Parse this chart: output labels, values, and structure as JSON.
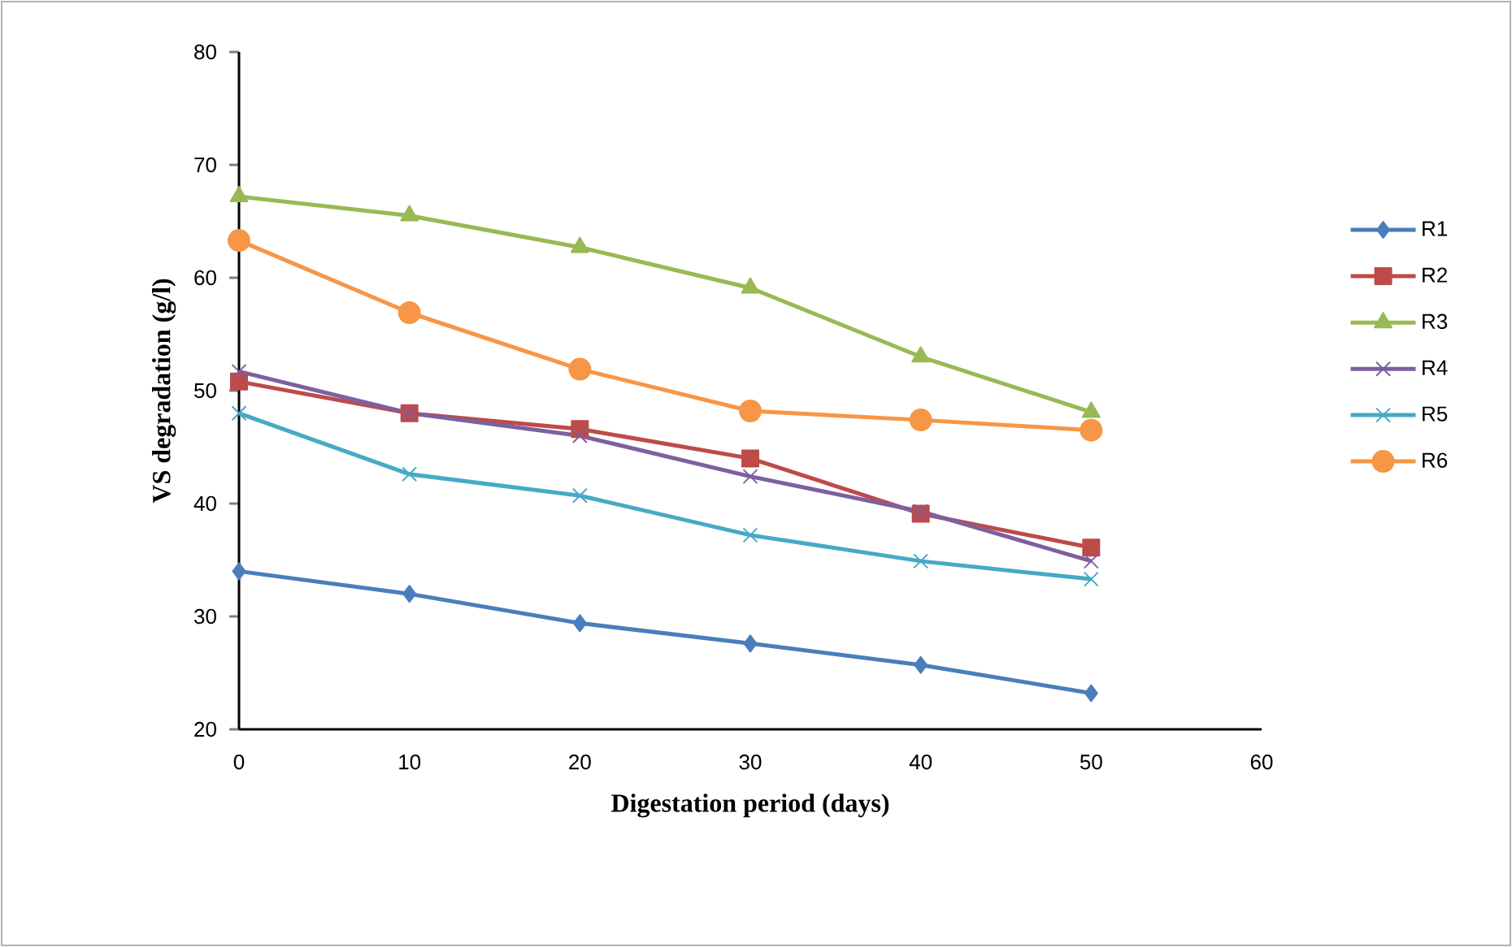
{
  "chart_data": {
    "type": "line",
    "xlabel": "Digestation period (days)",
    "ylabel": "VS degradation (g/l)",
    "x": [
      0,
      10,
      20,
      30,
      40,
      50
    ],
    "xlim": [
      0,
      60
    ],
    "xticks": [
      0,
      10,
      20,
      30,
      40,
      50,
      60
    ],
    "ylim": [
      20,
      80
    ],
    "yticks": [
      20,
      30,
      40,
      50,
      60,
      70,
      80
    ],
    "grid": false,
    "legend": "right",
    "series": [
      {
        "name": "R1",
        "color": "#4a7ebb",
        "marker": "diamond",
        "values": [
          34.0,
          32.0,
          29.4,
          27.6,
          25.7,
          23.2
        ]
      },
      {
        "name": "R2",
        "color": "#be4b48",
        "marker": "square",
        "values": [
          50.8,
          48.0,
          46.6,
          44.0,
          39.1,
          36.1
        ]
      },
      {
        "name": "R3",
        "color": "#98b954",
        "marker": "triangle",
        "values": [
          67.2,
          65.5,
          62.7,
          59.1,
          53.0,
          48.1
        ]
      },
      {
        "name": "R4",
        "color": "#7d60a0",
        "marker": "cross",
        "values": [
          51.7,
          48.0,
          46.0,
          42.4,
          39.3,
          34.9
        ]
      },
      {
        "name": "R5",
        "color": "#46aac5",
        "marker": "cross",
        "values": [
          48.0,
          42.6,
          40.7,
          37.2,
          34.9,
          33.3
        ]
      },
      {
        "name": "R6",
        "color": "#f79646",
        "marker": "circle",
        "values": [
          63.3,
          56.9,
          51.9,
          48.2,
          47.4,
          46.5
        ]
      }
    ]
  }
}
